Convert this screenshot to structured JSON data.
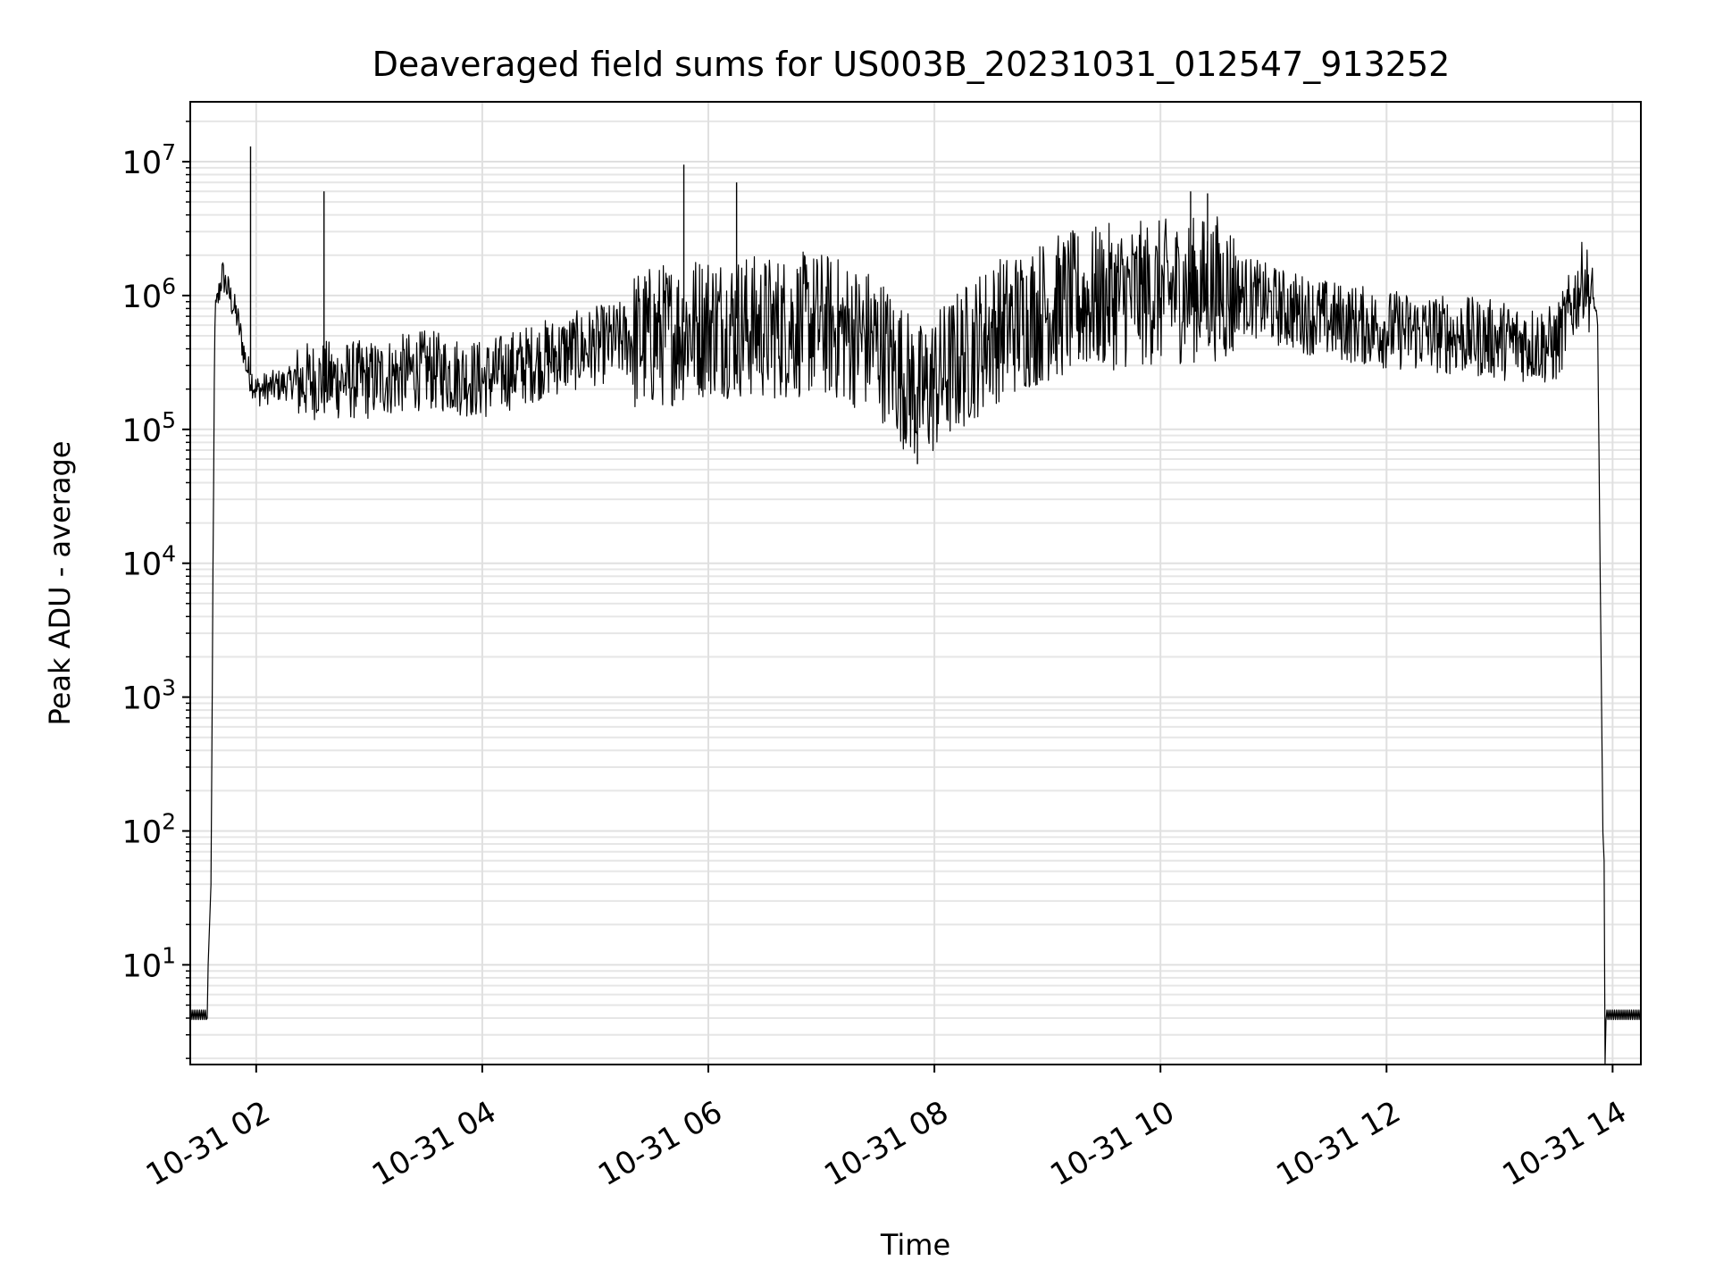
{
  "chart_data": {
    "type": "line",
    "title": "Deaveraged field sums for US003B_20231031_012547_913252",
    "xlabel": "Time",
    "ylabel": "Peak ADU - average",
    "yscale": "log",
    "ylim": [
      1.8,
      28000000
    ],
    "xlim": [
      "2023-10-31 01:25",
      "2023-10-31 14:15"
    ],
    "x_ticks": [
      "10-31 02",
      "10-31 04",
      "10-31 06",
      "10-31 08",
      "10-31 10",
      "10-31 12",
      "10-31 14"
    ],
    "y_ticks": [
      {
        "base": "10",
        "exp": "1"
      },
      {
        "base": "10",
        "exp": "2"
      },
      {
        "base": "10",
        "exp": "3"
      },
      {
        "base": "10",
        "exp": "4"
      },
      {
        "base": "10",
        "exp": "5"
      },
      {
        "base": "10",
        "exp": "6"
      },
      {
        "base": "10",
        "exp": "7"
      }
    ],
    "grid": "on (major and minor)",
    "series": [
      {
        "color": "#000000",
        "x": [
          "2023-10-31 01:25",
          "2023-10-31 01:34",
          "2023-10-31 01:36",
          "2023-10-31 01:38",
          "2023-10-31 01:42",
          "2023-10-31 01:50",
          "2023-10-31 01:55",
          "2023-10-31 02:00",
          "2023-10-31 02:30",
          "2023-10-31 03:00",
          "2023-10-31 03:30",
          "2023-10-31 04:00",
          "2023-10-31 04:30",
          "2023-10-31 05:00",
          "2023-10-31 05:30",
          "2023-10-31 06:00",
          "2023-10-31 06:30",
          "2023-10-31 07:00",
          "2023-10-31 07:30",
          "2023-10-31 07:52",
          "2023-10-31 08:30",
          "2023-10-31 09:00",
          "2023-10-31 09:30",
          "2023-10-31 10:00",
          "2023-10-31 10:30",
          "2023-10-31 11:00",
          "2023-10-31 11:30",
          "2023-10-31 12:00",
          "2023-10-31 12:30",
          "2023-10-31 13:00",
          "2023-10-31 13:30",
          "2023-10-31 13:45",
          "2023-10-31 13:52",
          "2023-10-31 13:55",
          "2023-10-31 13:56",
          "2023-10-31 14:15"
        ],
        "y": [
          4,
          4,
          40,
          700000,
          1500000,
          700000,
          300000,
          200000,
          250000,
          250000,
          300000,
          250000,
          350000,
          450000,
          550000,
          700000,
          650000,
          700000,
          500000,
          200000,
          600000,
          900000,
          1100000,
          1200000,
          1300000,
          900000,
          700000,
          600000,
          550000,
          500000,
          450000,
          1500000,
          700000,
          60,
          4,
          4
        ],
        "spikes": [
          {
            "x": "2023-10-31 01:57",
            "y": 13000000
          },
          {
            "x": "2023-10-31 02:36",
            "y": 6000000
          },
          {
            "x": "2023-10-31 05:47",
            "y": 9500000
          },
          {
            "x": "2023-10-31 06:15",
            "y": 7000000
          },
          {
            "x": "2023-10-31 10:16",
            "y": 6000000
          },
          {
            "x": "2023-10-31 10:25",
            "y": 5800000
          },
          {
            "x": "2023-10-31 07:51",
            "y": 55000
          }
        ]
      }
    ]
  }
}
